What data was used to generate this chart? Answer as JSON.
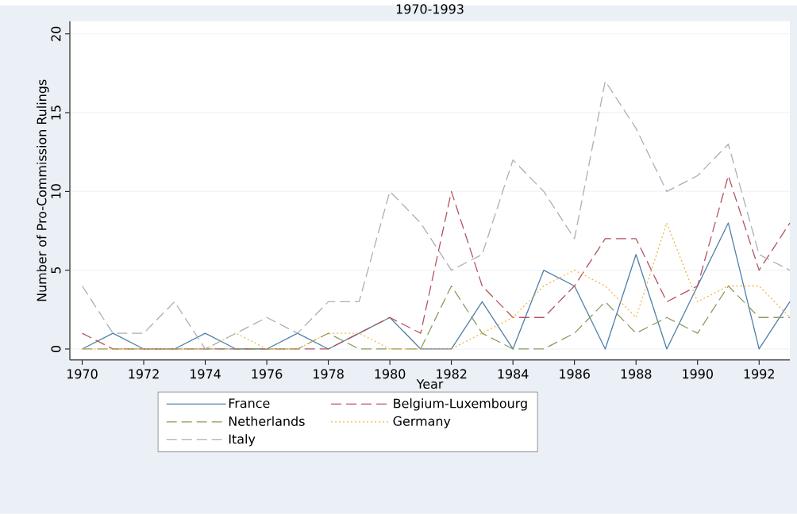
{
  "chart_data": {
    "type": "line",
    "title": "1970-1993",
    "xlabel": "Year",
    "ylabel": "Number of Pro-Commission Rulings",
    "x": [
      1970,
      1971,
      1972,
      1973,
      1974,
      1975,
      1976,
      1977,
      1978,
      1979,
      1980,
      1981,
      1982,
      1983,
      1984,
      1985,
      1986,
      1987,
      1988,
      1989,
      1990,
      1991,
      1992,
      1993
    ],
    "series": [
      {
        "name": "France",
        "color": "#4f7fa8",
        "line_style": "solid",
        "values": [
          0,
          1,
          0,
          0,
          1,
          0,
          0,
          1,
          0,
          1,
          2,
          0,
          0,
          3,
          0,
          5,
          4,
          0,
          6,
          0,
          4,
          8,
          0,
          3
        ]
      },
      {
        "name": "Belgium-Luxembourg",
        "color": "#b5525f",
        "line_style": "dashed",
        "values": [
          1,
          0,
          0,
          0,
          0,
          0,
          0,
          0,
          0,
          1,
          2,
          1,
          10,
          4,
          2,
          2,
          4,
          7,
          7,
          3,
          4,
          11,
          5,
          8
        ]
      },
      {
        "name": "Netherlands",
        "color": "#8f9a5e",
        "line_style": "dashed",
        "values": [
          0,
          0,
          0,
          0,
          0,
          0,
          0,
          0,
          1,
          0,
          0,
          0,
          4,
          1,
          0,
          0,
          1,
          3,
          1,
          2,
          1,
          4,
          2,
          2
        ]
      },
      {
        "name": "Germany",
        "color": "#f2b544",
        "line_style": "dotted",
        "values": [
          0,
          0,
          0,
          0,
          0,
          1,
          0,
          0,
          1,
          1,
          0,
          0,
          0,
          1,
          2,
          4,
          5,
          4,
          2,
          8,
          3,
          4,
          4,
          2
        ]
      },
      {
        "name": "Italy",
        "color": "#a8b0b8",
        "line_style": "dashed",
        "values": [
          4,
          1,
          1,
          3,
          0,
          1,
          2,
          1,
          3,
          3,
          10,
          8,
          5,
          6,
          12,
          10,
          7,
          17,
          14,
          10,
          11,
          13,
          6,
          5
        ]
      }
    ],
    "xlim": [
      1969.6,
      1993
    ],
    "ylim": [
      -0.7,
      20.8
    ],
    "xticks": [
      1970,
      1972,
      1974,
      1976,
      1978,
      1980,
      1982,
      1984,
      1986,
      1988,
      1990,
      1992
    ],
    "yticks": [
      0,
      5,
      10,
      15,
      20
    ],
    "grid": "y",
    "legend": "bottom"
  }
}
